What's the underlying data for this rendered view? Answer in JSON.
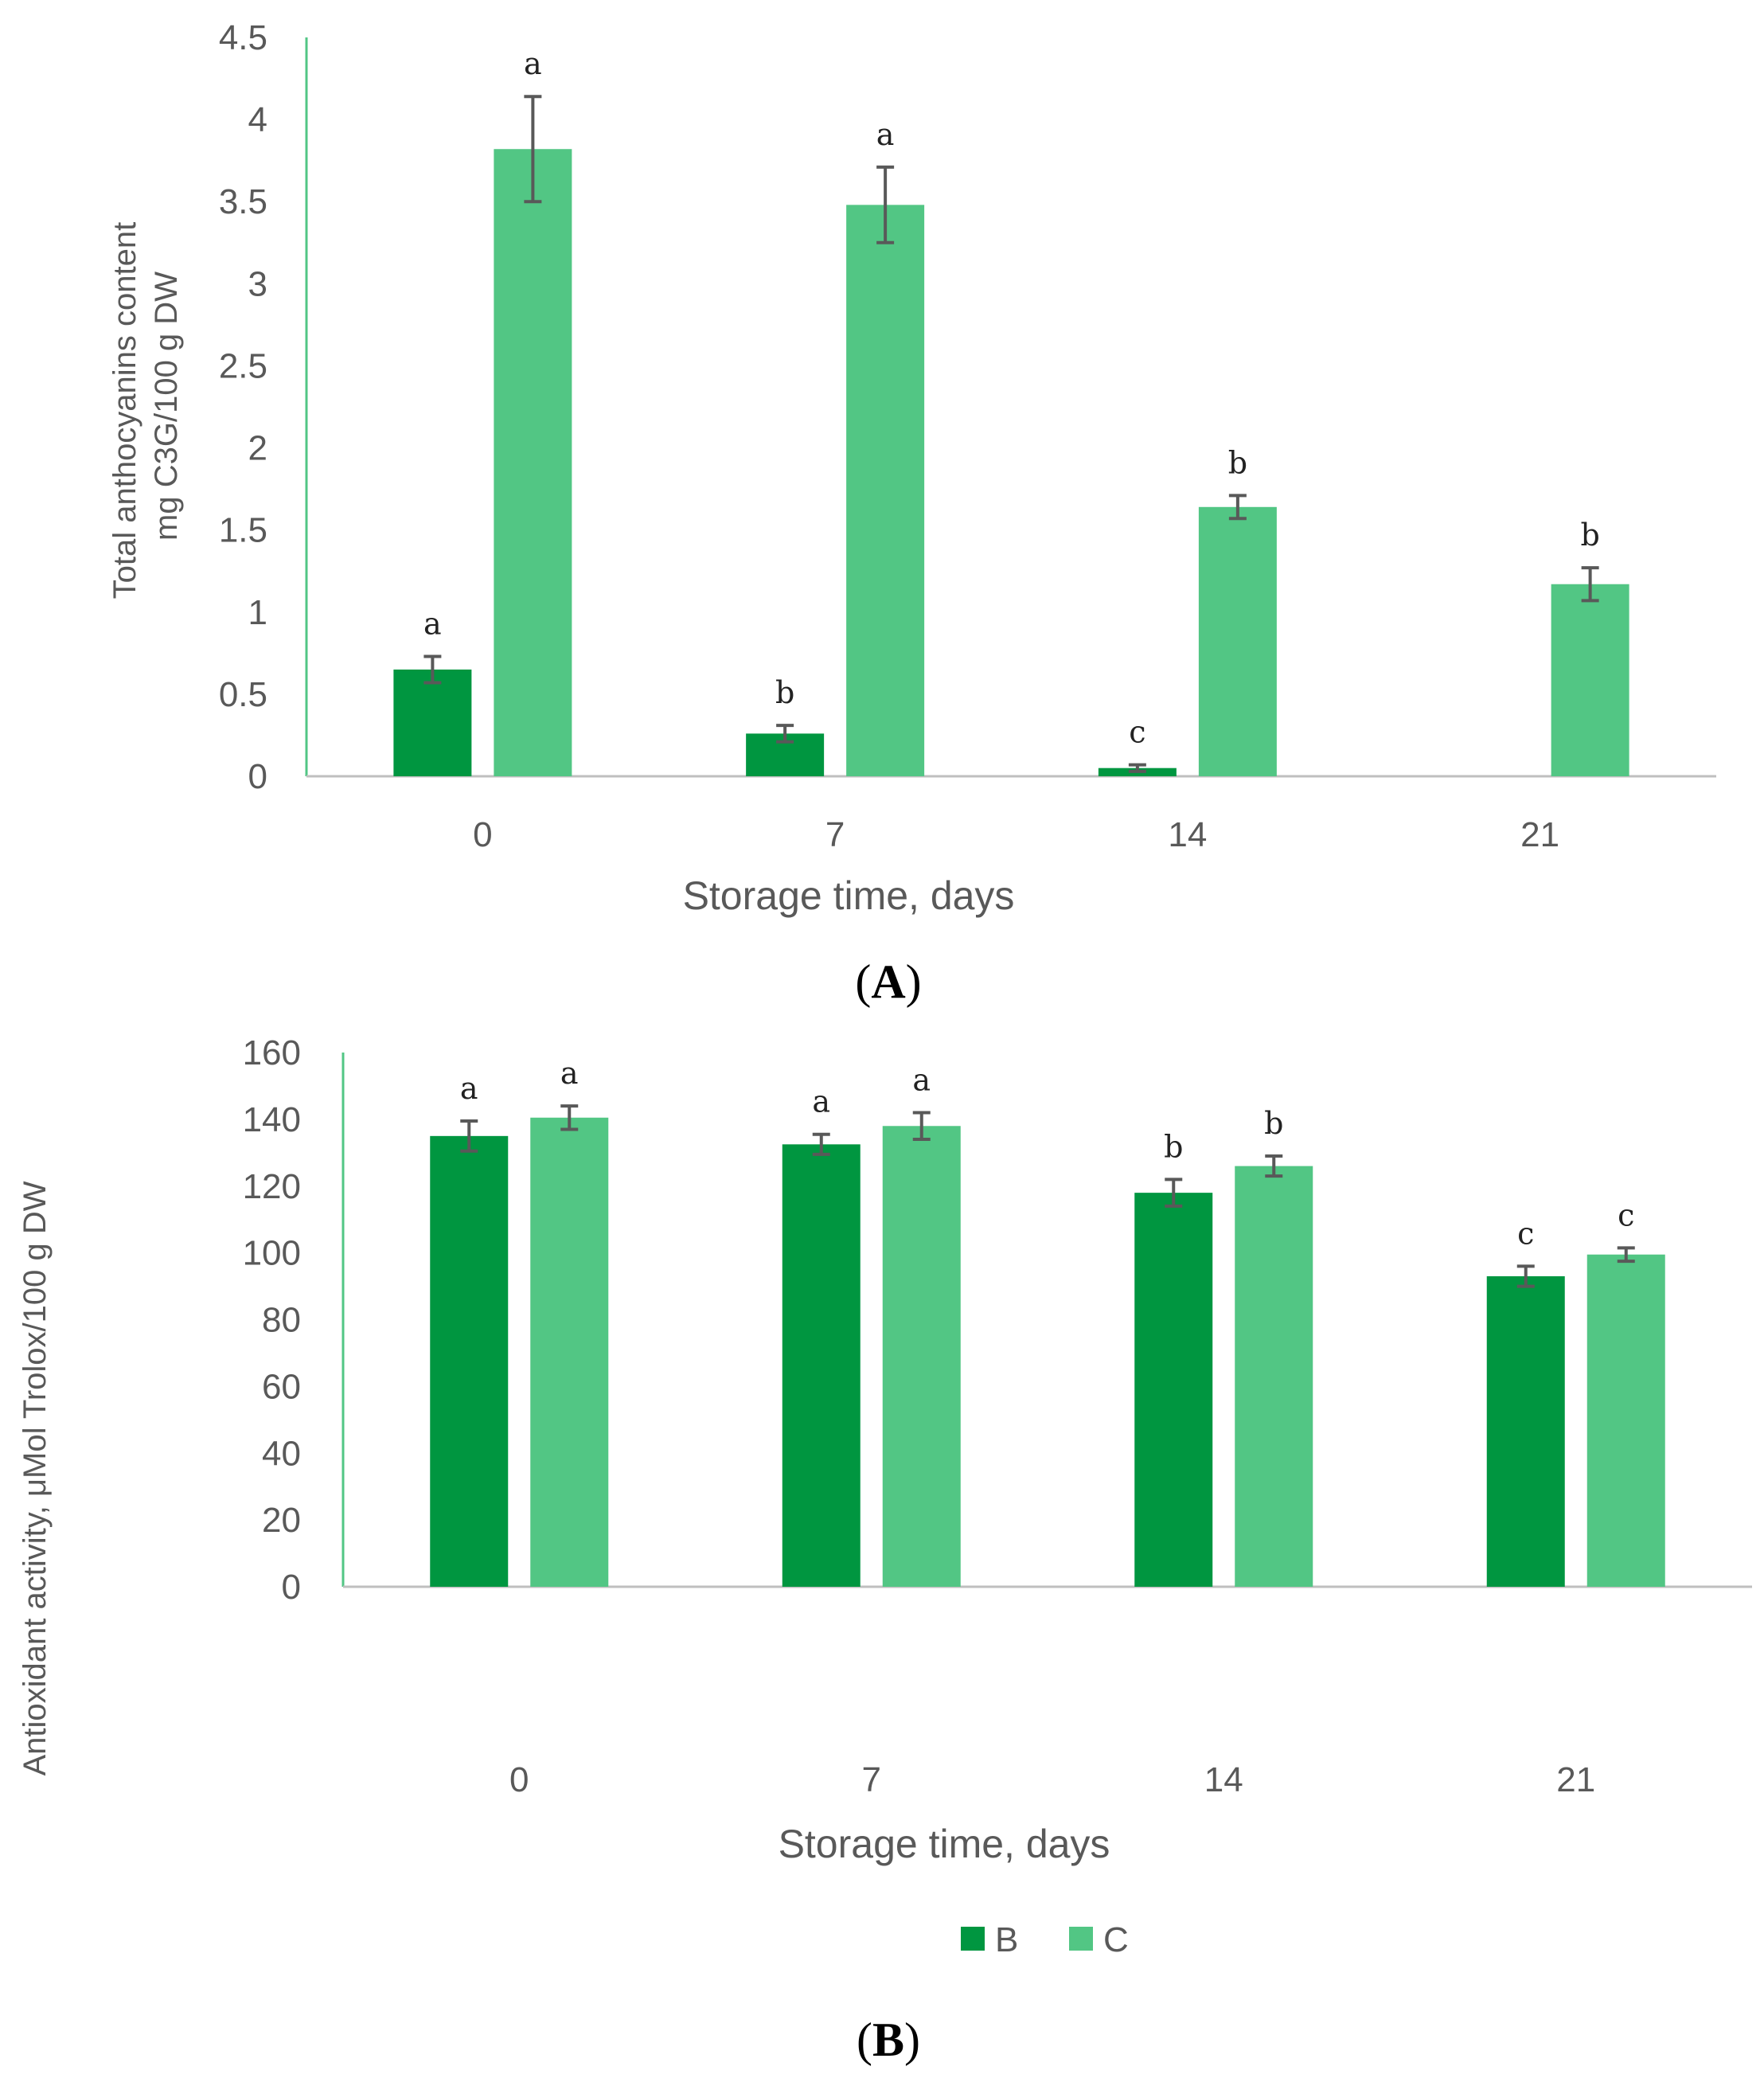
{
  "colors": {
    "B": "#009640",
    "C": "#52c684",
    "axis": "#bfbfbf",
    "error_bar": "#595959"
  },
  "legend": {
    "items": [
      {
        "key": "B",
        "label": "B"
      },
      {
        "key": "C",
        "label": "C"
      }
    ]
  },
  "chart_data": [
    {
      "type": "bar",
      "panel_label": "A",
      "categories": [
        "0",
        "7",
        "14",
        "21"
      ],
      "ylabel_line1": "Total anthocyanins content",
      "ylabel_line2": "mg C3G/100 g DW",
      "xlabel": "Storage time, days",
      "ylim": [
        0,
        4.5
      ],
      "yticks": [
        "0",
        "0.5",
        "1",
        "1.5",
        "2",
        "2.5",
        "3",
        "3.5",
        "4",
        "4.5"
      ],
      "grid": false,
      "series": [
        {
          "name": "B",
          "values": [
            0.65,
            0.26,
            0.05,
            0
          ],
          "errors": [
            0.08,
            0.05,
            0.02,
            0
          ],
          "letters": [
            "a",
            "b",
            "c",
            ""
          ]
        },
        {
          "name": "C",
          "values": [
            3.82,
            3.48,
            1.64,
            1.17
          ],
          "errors": [
            0.32,
            0.23,
            0.07,
            0.1
          ],
          "letters": [
            "a",
            "a",
            "b",
            "b"
          ]
        }
      ]
    },
    {
      "type": "bar",
      "panel_label": "B",
      "categories": [
        "0",
        "7",
        "14",
        "21"
      ],
      "ylabel": "Antioxidant activity, μMol Trolox/100 g DW",
      "xlabel": "Storage time, days",
      "ylim": [
        0,
        160
      ],
      "yticks": [
        "0",
        "20",
        "40",
        "60",
        "80",
        "100",
        "120",
        "140",
        "160"
      ],
      "grid": false,
      "legend_position": "bottom",
      "series": [
        {
          "name": "B",
          "values": [
            135,
            132.5,
            118,
            93
          ],
          "errors": [
            4.5,
            3,
            4,
            3
          ],
          "letters": [
            "a",
            "a",
            "b",
            "c"
          ]
        },
        {
          "name": "C",
          "values": [
            140.5,
            138,
            126,
            99.5
          ],
          "errors": [
            3.5,
            4,
            3,
            2
          ],
          "letters": [
            "a",
            "a",
            "b",
            "c"
          ]
        }
      ]
    }
  ]
}
